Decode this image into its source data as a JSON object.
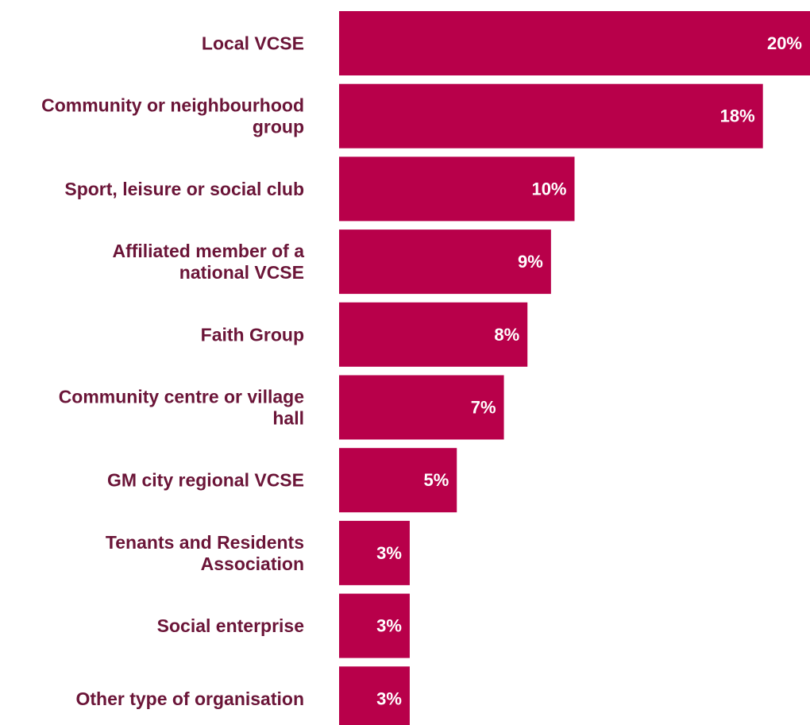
{
  "chart_data": {
    "type": "bar",
    "orientation": "horizontal",
    "categories": [
      "Local VCSE",
      "Community or neighbourhood group",
      "Sport, leisure or social club",
      "Affiliated member of a national VCSE",
      "Faith Group",
      "Community centre or village hall",
      "GM city regional VCSE",
      "Tenants and Residents Association",
      "Social enterprise",
      "Other type of organisation"
    ],
    "category_lines": [
      [
        "Local VCSE"
      ],
      [
        "Community or neighbourhood",
        "group"
      ],
      [
        "Sport, leisure or social club"
      ],
      [
        "Affiliated member of a",
        "national VCSE"
      ],
      [
        "Faith Group"
      ],
      [
        "Community centre or village",
        "hall"
      ],
      [
        "GM city regional VCSE"
      ],
      [
        "Tenants and Residents",
        "Association"
      ],
      [
        "Social enterprise"
      ],
      [
        "Other type of organisation"
      ]
    ],
    "values": [
      20,
      18,
      10,
      9,
      8,
      7,
      5,
      3,
      3,
      3
    ],
    "value_labels": [
      "20%",
      "18%",
      "10%",
      "9%",
      "8%",
      "7%",
      "5%",
      "3%",
      "3%",
      "3%"
    ],
    "unit": "%",
    "title": "",
    "xlabel": "",
    "ylabel": "",
    "xlim": [
      0,
      20
    ],
    "grid": false,
    "legend": "none",
    "colors": {
      "bar": "#B8004A",
      "category_text": "#6B1538",
      "value_text": "#FFFFFF",
      "background": "#FFFFFF"
    }
  }
}
